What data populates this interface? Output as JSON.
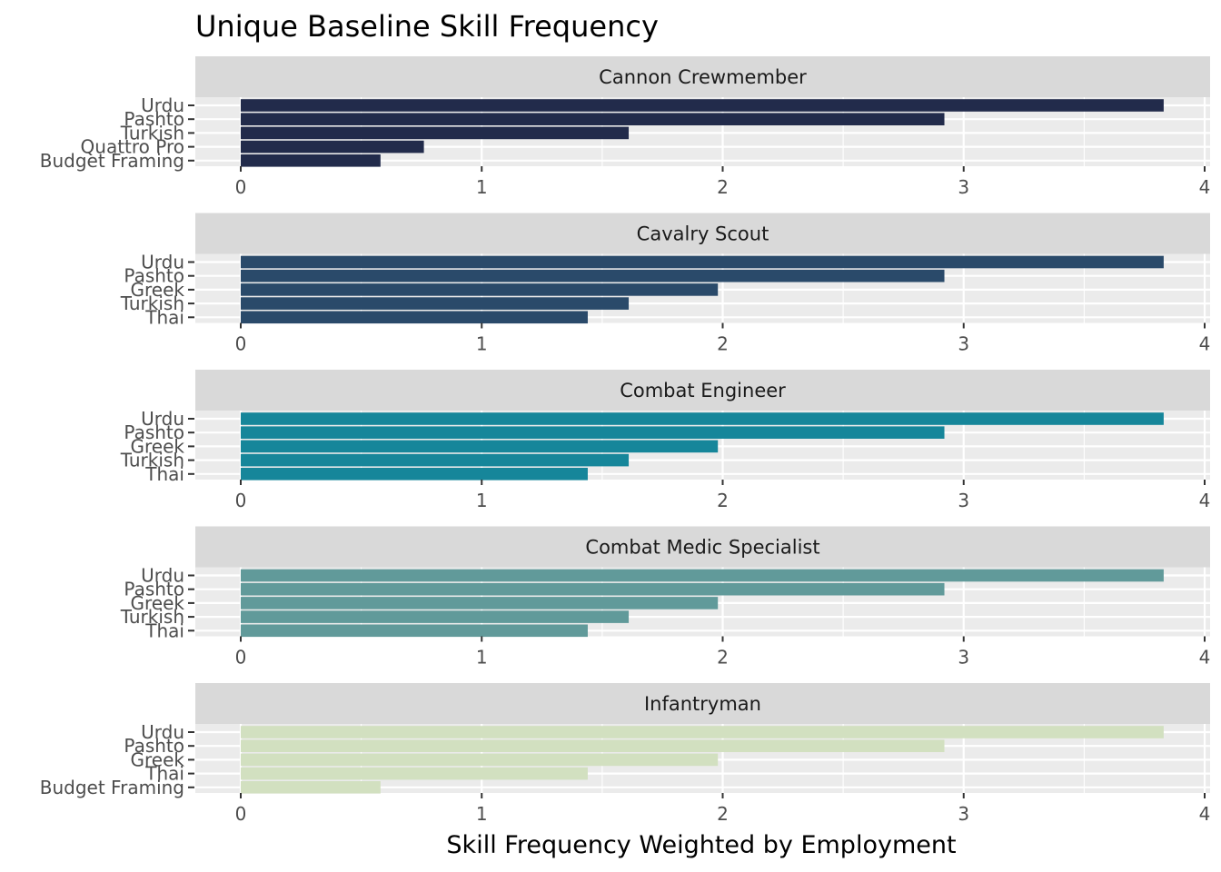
{
  "chart_data": {
    "type": "bar",
    "orientation": "horizontal",
    "title": "Unique Baseline Skill Frequency",
    "xlabel": "Skill Frequency Weighted by Employment",
    "ylabel": "",
    "xlim": [
      0,
      4
    ],
    "x_ticks": [
      "0",
      "1",
      "2",
      "3",
      "4"
    ],
    "facets": [
      {
        "name": "Cannon Crewmember",
        "color": "#222b4b",
        "categories": [
          "Urdu",
          "Pashto",
          "Turkish",
          "Quattro Pro",
          "Budget Framing"
        ],
        "values": [
          3.83,
          2.92,
          1.61,
          0.76,
          0.58
        ]
      },
      {
        "name": "Cavalry Scout",
        "color": "#2a4a6a",
        "categories": [
          "Urdu",
          "Pashto",
          "Greek",
          "Turkish",
          "Thai"
        ],
        "values": [
          3.83,
          2.92,
          1.98,
          1.61,
          1.44
        ]
      },
      {
        "name": "Combat Engineer",
        "color": "#16869a",
        "categories": [
          "Urdu",
          "Pashto",
          "Greek",
          "Turkish",
          "Thai"
        ],
        "values": [
          3.83,
          2.92,
          1.98,
          1.61,
          1.44
        ]
      },
      {
        "name": "Combat Medic Specialist",
        "color": "#619a9a",
        "categories": [
          "Urdu",
          "Pashto",
          "Greek",
          "Turkish",
          "Thai"
        ],
        "values": [
          3.83,
          2.92,
          1.98,
          1.61,
          1.44
        ]
      },
      {
        "name": "Infantryman",
        "color": "#d2e0c0",
        "categories": [
          "Urdu",
          "Pashto",
          "Greek",
          "Thai",
          "Budget Framing"
        ],
        "values": [
          3.83,
          2.92,
          1.98,
          1.44,
          0.58
        ]
      }
    ]
  }
}
